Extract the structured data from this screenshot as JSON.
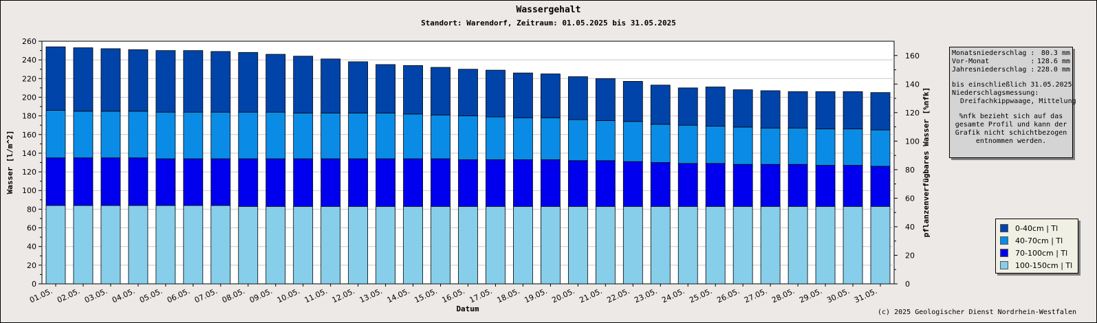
{
  "chart_data": {
    "type": "bar",
    "stacked": true,
    "title": "Wassergehalt",
    "subtitle": "Standort: Warendorf, Zeitraum: 01.05.2025 bis 31.05.2025",
    "xlabel": "Datum",
    "ylabel": "Wasser [l/m^2]",
    "y2label": "pflanzenverfügbares Wasser [%nfk]",
    "ylim": [
      0,
      260
    ],
    "y_ticks": [
      0,
      20,
      40,
      60,
      80,
      100,
      120,
      140,
      160,
      180,
      200,
      220,
      240,
      260
    ],
    "y2lim": [
      0,
      170
    ],
    "y2_ticks": [
      0,
      20,
      40,
      60,
      80,
      100,
      120,
      140,
      160
    ],
    "grid": true,
    "legend_position": "right",
    "categories": [
      "01.05.",
      "02.05.",
      "03.05.",
      "04.05.",
      "05.05.",
      "06.05.",
      "07.05.",
      "08.05.",
      "09.05.",
      "10.05.",
      "11.05.",
      "12.05.",
      "13.05.",
      "14.05.",
      "15.05.",
      "16.05.",
      "17.05.",
      "18.05.",
      "19.05.",
      "20.05.",
      "21.05.",
      "22.05.",
      "23.05.",
      "24.05.",
      "25.05.",
      "26.05.",
      "27.05.",
      "28.05.",
      "29.05.",
      "30.05.",
      "31.05."
    ],
    "series": [
      {
        "name": "100-150cm | Tl",
        "color": "#87ceeb",
        "values": [
          84,
          84,
          84,
          84,
          84,
          84,
          84,
          83,
          83,
          83,
          83,
          83,
          83,
          83,
          83,
          83,
          83,
          83,
          83,
          83,
          83,
          83,
          83,
          83,
          83,
          83,
          83,
          83,
          83,
          83,
          83
        ]
      },
      {
        "name": "70-100cm | Tl",
        "color": "#0000ee",
        "values": [
          51,
          51,
          51,
          51,
          50,
          50,
          50,
          51,
          51,
          51,
          51,
          51,
          51,
          51,
          51,
          50,
          50,
          50,
          50,
          49,
          49,
          48,
          47,
          46,
          46,
          45,
          45,
          45,
          44,
          44,
          43
        ]
      },
      {
        "name": "40-70cm | Tl",
        "color": "#0a8ce6",
        "values": [
          51,
          50,
          50,
          50,
          50,
          50,
          50,
          50,
          50,
          49,
          49,
          49,
          49,
          48,
          47,
          47,
          46,
          45,
          45,
          44,
          43,
          43,
          41,
          41,
          40,
          40,
          39,
          39,
          39,
          39,
          39
        ]
      },
      {
        "name": "0-40cm | Tl",
        "color": "#0044aa",
        "values": [
          68,
          68,
          67,
          66,
          66,
          66,
          65,
          64,
          62,
          61,
          58,
          55,
          52,
          52,
          51,
          50,
          50,
          48,
          47,
          46,
          45,
          43,
          42,
          40,
          42,
          40,
          40,
          39,
          40,
          40,
          40
        ]
      }
    ]
  },
  "info": {
    "monat_label": "Monatsniederschlag :",
    "monat_value": "80.3 mm",
    "vormonat_label": "Vor-Monat          :",
    "vormonat_value": "128.6 mm",
    "jahr_label": "Jahresniederschlag :",
    "jahr_value": "228.0 mm",
    "stand": "bis einschließlich 31.05.2025",
    "messung_label": "Niederschlagsmessung:",
    "messung_value": "  Dreifachkippwaage, Mittelung",
    "note_1": "%nfk bezieht sich auf das",
    "note_2": "gesamte Profil und kann der",
    "note_3": "Grafik nicht schichtbezogen",
    "note_4": "entnommen werden."
  },
  "copyright": "(c) 2025 Geologischer Dienst Nordrhein-Westfalen"
}
